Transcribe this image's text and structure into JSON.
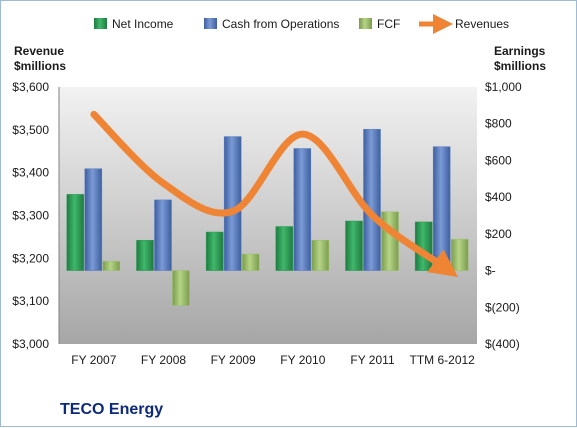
{
  "chart_data": {
    "type": "bar",
    "company": "TECO Energy",
    "categories": [
      "FY 2007",
      "FY 2008",
      "FY 2009",
      "FY 2010",
      "FY 2011",
      "TTM 6-2012"
    ],
    "left_axis": {
      "label_line1": "Revenue",
      "label_line2": "$millions",
      "ylim": [
        3000,
        3600
      ],
      "ticks": [
        3000,
        3100,
        3200,
        3300,
        3400,
        3500,
        3600
      ],
      "tick_labels": [
        "$3,000",
        "$3,100",
        "$3,200",
        "$3,300",
        "$3,400",
        "$3,500",
        "$3,600"
      ]
    },
    "right_axis": {
      "label_line1": "Earnings",
      "label_line2": "$millions",
      "ylim": [
        -400,
        1000
      ],
      "ticks": [
        -400,
        -200,
        0,
        200,
        400,
        600,
        800,
        1000
      ],
      "tick_labels": [
        "$(400)",
        "$(200)",
        "$-",
        "$200",
        "$400",
        "$600",
        "$800",
        "$1,000"
      ]
    },
    "series": [
      {
        "name": "Net Income",
        "axis": "right",
        "kind": "bar",
        "color": "#2e9b55",
        "values": [
          415,
          165,
          210,
          240,
          270,
          265
        ]
      },
      {
        "name": "Cash from Operations",
        "axis": "right",
        "kind": "bar",
        "color": "#5b7fc4",
        "values": [
          555,
          385,
          730,
          665,
          770,
          675
        ]
      },
      {
        "name": "FCF",
        "axis": "right",
        "kind": "bar",
        "color": "#9bc06a",
        "values": [
          50,
          -190,
          90,
          165,
          320,
          170
        ]
      },
      {
        "name": "Revenues",
        "axis": "left",
        "kind": "line",
        "color": "#ee8434",
        "values": [
          3536,
          3375,
          3310,
          3490,
          3300,
          3183
        ]
      }
    ],
    "legend_position": "top",
    "grid": false
  }
}
